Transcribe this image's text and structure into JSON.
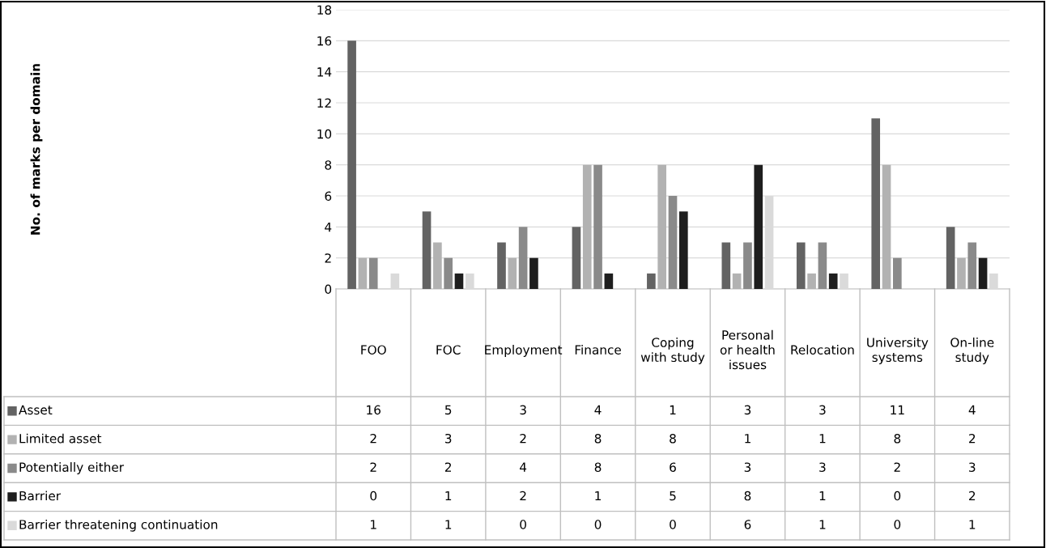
{
  "chart_data": {
    "type": "bar",
    "annotations": [
      "No. of marks per domain"
    ],
    "categories": [
      "FOO",
      "FOC",
      "Employment",
      "Finance",
      "Coping with study",
      "Personal or health issues",
      "Relocation",
      "University systems",
      "On-line study"
    ],
    "series": [
      {
        "name": "Asset",
        "color": "#636363",
        "values": [
          16,
          5,
          3,
          4,
          1,
          3,
          3,
          11,
          4
        ]
      },
      {
        "name": "Limited asset",
        "color": "#b2b2b2",
        "values": [
          2,
          3,
          2,
          8,
          8,
          1,
          1,
          8,
          2
        ]
      },
      {
        "name": "Potentially either",
        "color": "#8a8a8a",
        "values": [
          2,
          2,
          4,
          8,
          6,
          3,
          3,
          2,
          3
        ]
      },
      {
        "name": "Barrier",
        "color": "#1e1e1e",
        "values": [
          0,
          1,
          2,
          1,
          5,
          8,
          1,
          0,
          2
        ]
      },
      {
        "name": "Barrier threatening continuation",
        "color": "#dadada",
        "values": [
          1,
          1,
          0,
          0,
          0,
          6,
          1,
          0,
          1
        ]
      }
    ],
    "ylim": [
      0,
      18
    ],
    "yticks": [
      0,
      2,
      4,
      6,
      8,
      10,
      12,
      14,
      16,
      18
    ],
    "grid": "y",
    "data_labels": true,
    "legend": "bottom"
  }
}
